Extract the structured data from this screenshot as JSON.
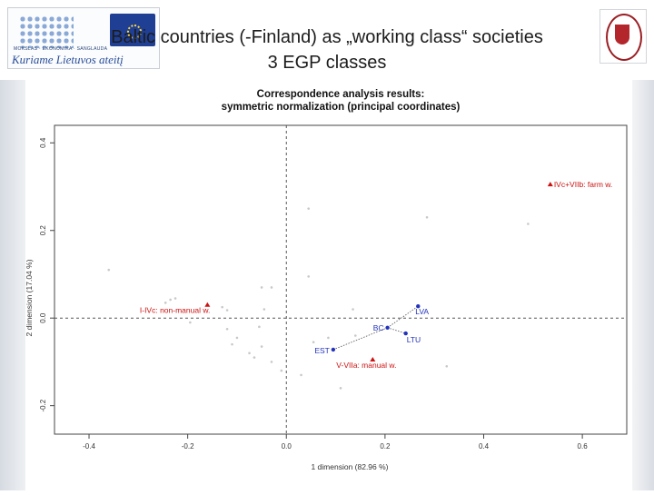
{
  "slide": {
    "title_line1": "Baltic countries (-Finland) as „working class“ societies",
    "title_line2": "3 EGP classes",
    "logo_left_text": "Kuriame Lietuvos ateitį",
    "logo_left_small": "MOKSLAS · EKONOMIKA · SANGLAUDA"
  },
  "colors": {
    "class_points": "#cc1111",
    "country_points": "#2233bb",
    "supplementary_points": "#c8c8c8",
    "axis_lines": "#555555"
  },
  "chart_data": {
    "type": "scatter",
    "title": "Correspondence analysis results:",
    "subtitle": "symmetric normalization (principal coordinates)",
    "xlabel": "1 dimension (82.96 %)",
    "ylabel": "2 dimension (17.04 %)",
    "xlim": [
      -0.47,
      0.69
    ],
    "ylim": [
      -0.265,
      0.44
    ],
    "x_ticks": [
      {
        "value": -0.4,
        "label": "-0.4"
      },
      {
        "value": -0.2,
        "label": "-0.2"
      },
      {
        "value": 0.0,
        "label": "0.0"
      },
      {
        "value": 0.2,
        "label": "0.2"
      },
      {
        "value": 0.4,
        "label": "0.4"
      },
      {
        "value": 0.6,
        "label": "0.6"
      }
    ],
    "y_ticks": [
      {
        "value": 0.4,
        "label": "0.4"
      },
      {
        "value": 0.2,
        "label": "0.2"
      },
      {
        "value": 0.0,
        "label": "0.0"
      },
      {
        "value": -0.2,
        "label": "-0.2"
      }
    ],
    "grid": false,
    "reference_lines": {
      "x": 0,
      "y": 0
    },
    "classes": [
      {
        "label": "I-IVc: non-manual w.",
        "x": -0.16,
        "y": 0.03
      },
      {
        "label": "IVc+VIIb: farm w.",
        "x": 0.535,
        "y": 0.305
      },
      {
        "label": "V-VIIa: manual w.",
        "x": 0.175,
        "y": -0.095
      }
    ],
    "countries": [
      {
        "label": "LVA",
        "x": 0.267,
        "y": 0.027
      },
      {
        "label": "LTU",
        "x": 0.242,
        "y": -0.035
      },
      {
        "label": "BC",
        "x": 0.205,
        "y": -0.022
      },
      {
        "label": "EST",
        "x": 0.095,
        "y": -0.072
      }
    ],
    "star_center": "BC",
    "supplementary": [
      {
        "x": -0.36,
        "y": 0.11
      },
      {
        "x": -0.235,
        "y": 0.042
      },
      {
        "x": -0.245,
        "y": 0.035
      },
      {
        "x": -0.225,
        "y": 0.045
      },
      {
        "x": -0.195,
        "y": -0.01
      },
      {
        "x": -0.13,
        "y": 0.025
      },
      {
        "x": -0.12,
        "y": 0.018
      },
      {
        "x": -0.12,
        "y": -0.025
      },
      {
        "x": -0.11,
        "y": -0.06
      },
      {
        "x": -0.1,
        "y": -0.045
      },
      {
        "x": -0.075,
        "y": -0.08
      },
      {
        "x": -0.065,
        "y": -0.09
      },
      {
        "x": -0.05,
        "y": -0.065
      },
      {
        "x": -0.05,
        "y": 0.07
      },
      {
        "x": -0.03,
        "y": 0.07
      },
      {
        "x": -0.055,
        "y": -0.02
      },
      {
        "x": -0.045,
        "y": 0.02
      },
      {
        "x": -0.03,
        "y": -0.1
      },
      {
        "x": -0.01,
        "y": -0.12
      },
      {
        "x": 0.045,
        "y": 0.25
      },
      {
        "x": 0.045,
        "y": 0.095
      },
      {
        "x": 0.055,
        "y": -0.055
      },
      {
        "x": 0.085,
        "y": -0.045
      },
      {
        "x": 0.14,
        "y": -0.04
      },
      {
        "x": 0.135,
        "y": 0.02
      },
      {
        "x": 0.11,
        "y": -0.16
      },
      {
        "x": 0.03,
        "y": -0.13
      },
      {
        "x": 0.285,
        "y": 0.23
      },
      {
        "x": 0.49,
        "y": 0.215
      },
      {
        "x": 0.325,
        "y": -0.11
      }
    ]
  }
}
